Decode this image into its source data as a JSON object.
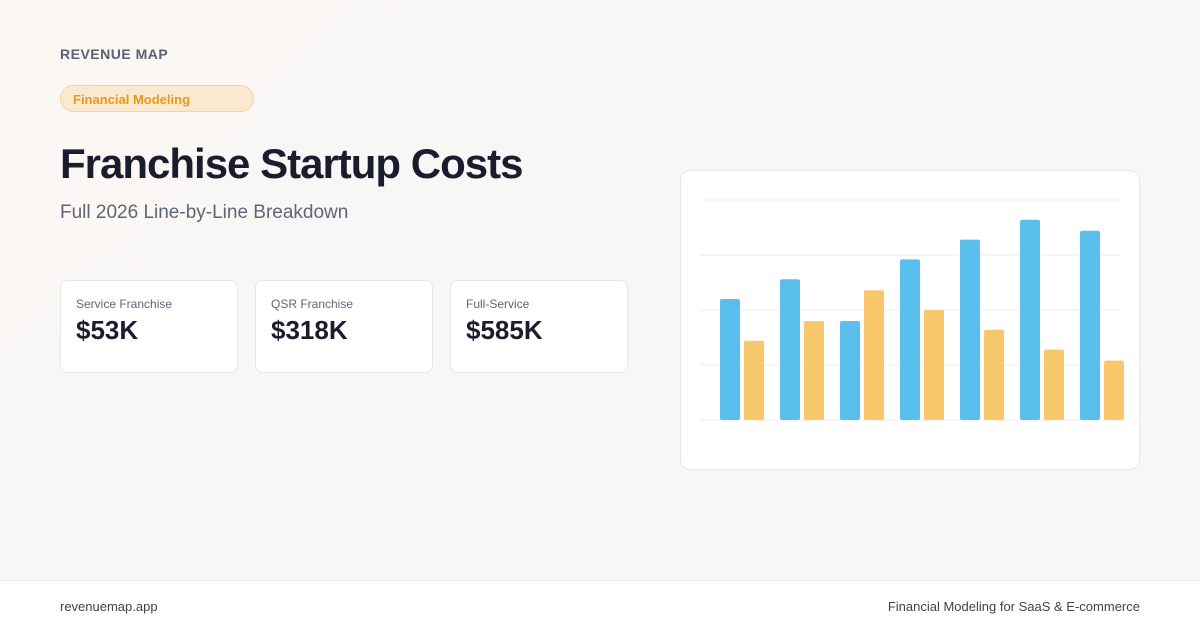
{
  "header": {
    "brand": "REVENUE MAP",
    "badge": "Financial Modeling",
    "title": "Franchise Startup Costs",
    "subtitle": "Full 2026 Line-by-Line Breakdown"
  },
  "stats": [
    {
      "label": "Service Franchise",
      "value": "$53K"
    },
    {
      "label": "QSR Franchise",
      "value": "$318K"
    },
    {
      "label": "Full-Service",
      "value": "$585K"
    }
  ],
  "chart_data": {
    "type": "bar",
    "ylim": [
      0,
      100
    ],
    "yticks": [
      0,
      25,
      50,
      75,
      100
    ],
    "grid": true,
    "series": [
      {
        "color": "#5bbfee",
        "values": [
          55,
          64,
          45,
          73,
          82,
          91,
          86
        ]
      },
      {
        "color": "#f8c66b",
        "values": [
          36,
          45,
          59,
          50,
          41,
          32,
          27
        ]
      }
    ]
  },
  "footer": {
    "left": "revenuemap.app",
    "right": "Financial Modeling for SaaS & E-commerce"
  }
}
